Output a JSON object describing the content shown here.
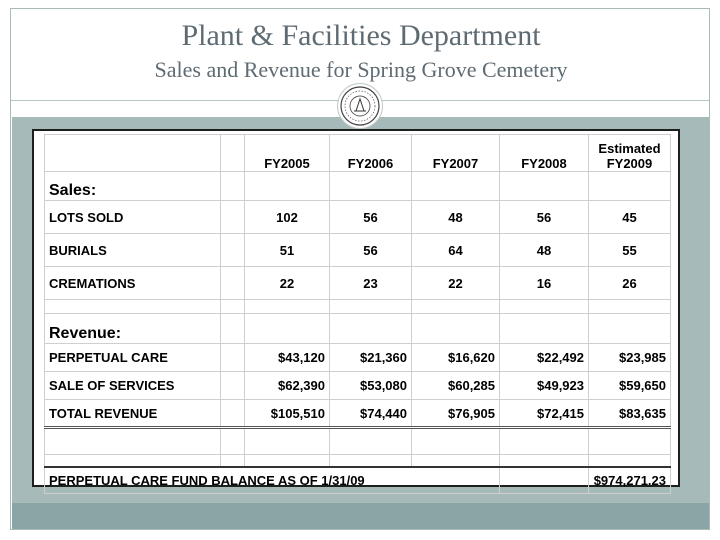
{
  "header": {
    "title": "Plant & Facilities Department",
    "subtitle": "Sales and Revenue for Spring Grove Cemetery"
  },
  "table": {
    "columns": [
      "FY2005",
      "FY2006",
      "FY2007",
      "FY2008"
    ],
    "estimated_column": {
      "line1": "Estimated",
      "line2": "FY2009"
    },
    "sales": {
      "heading": "Sales:",
      "rows": [
        {
          "label": "LOTS SOLD",
          "values": [
            "102",
            "56",
            "48",
            "56",
            "45"
          ]
        },
        {
          "label": "BURIALS",
          "values": [
            "51",
            "56",
            "64",
            "48",
            "55"
          ]
        },
        {
          "label": "CREMATIONS",
          "values": [
            "22",
            "23",
            "22",
            "16",
            "26"
          ]
        }
      ]
    },
    "revenue": {
      "heading": "Revenue:",
      "rows": [
        {
          "label": "PERPETUAL CARE",
          "values": [
            "$43,120",
            "$21,360",
            "$16,620",
            "$22,492",
            "$23,985"
          ]
        },
        {
          "label": "SALE OF SERVICES",
          "values": [
            "$62,390",
            "$53,080",
            "$60,285",
            "$49,923",
            "$59,650"
          ]
        }
      ],
      "total": {
        "label": "TOTAL REVENUE",
        "values": [
          "$105,510",
          "$74,440",
          "$76,905",
          "$72,415",
          "$83,635"
        ]
      }
    },
    "fund_balance": {
      "label": "PERPETUAL CARE FUND BALANCE AS OF 1/31/09",
      "value": "$974,271.23"
    }
  },
  "colors": {
    "title_text": "#5f6b73",
    "panel": "#a7baba",
    "footer_bar": "#89a5a6"
  },
  "icons": {
    "seal": "city-seal-icon"
  }
}
